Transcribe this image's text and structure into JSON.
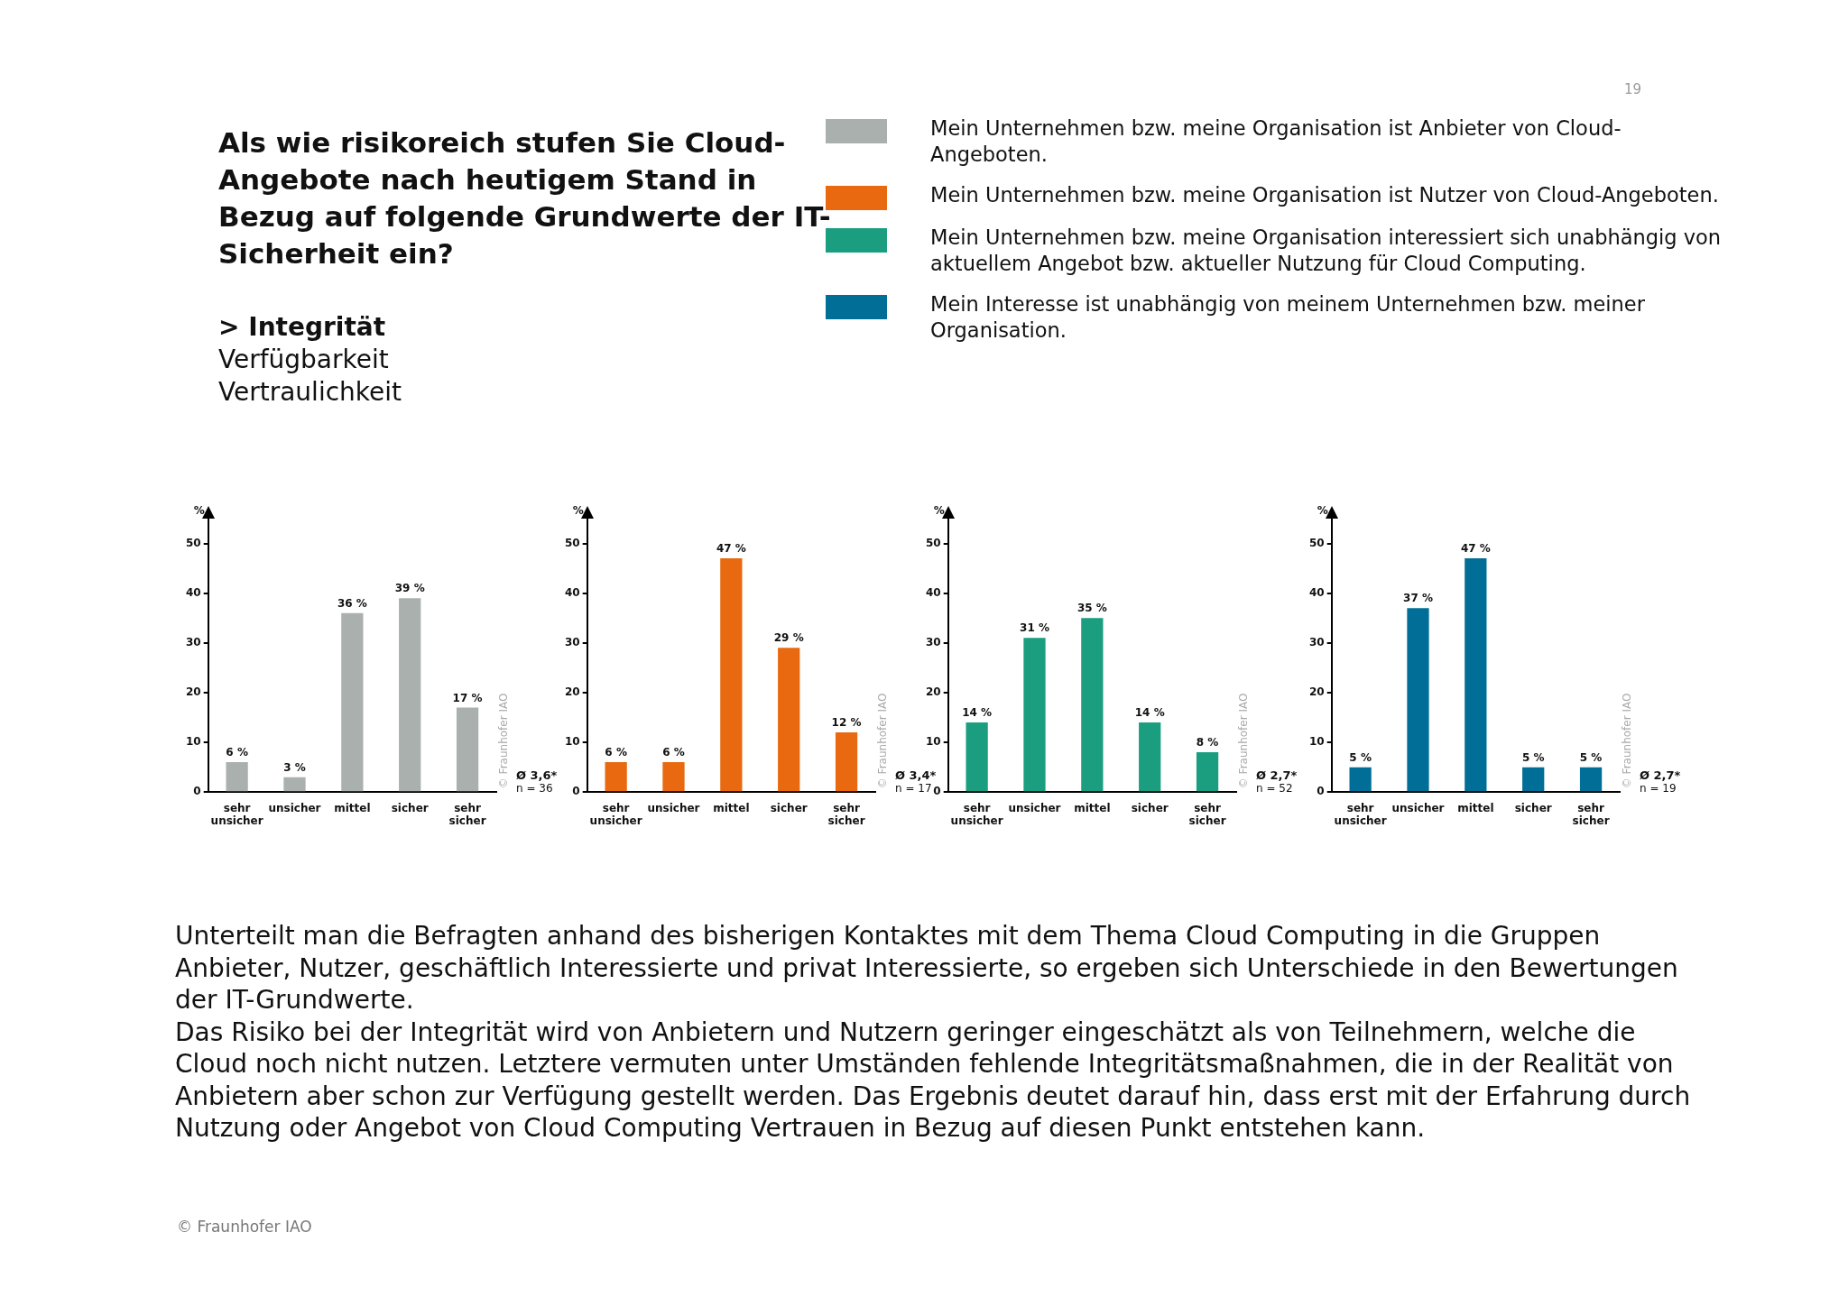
{
  "chart_data": [
    {
      "type": "other",
      "title": "Als wie risikoreich stufen Sie Cloud-Angebote nach heutigem Stand in Bezug auf folgende Grundwerte der IT-Sicherheit ein?",
      "subtitle": "> Integrität",
      "annotations": [
        "Verfügbarkeit",
        "Vertraulichkeit",
        "Unterteilt man die Befragten anhand des bisherigen Kontaktes mit dem Thema Cloud Computing in die Gruppen Anbieter, Nutzer, geschäftlich Interessierte und privat Interessierte, so ergeben sich Unterschiede in den Bewertungen der IT-Grundwerte.",
        "Das Risiko bei der Integrität wird von Anbietern und Nutzern geringer eingeschätzt als von Teilnehmern, welche die Cloud noch nicht nutzen. Letztere vermuten unter Umständen fehlende Integritätsmaßnahmen, die in der Realität von Anbietern aber schon zur Verfügung gestellt werden. Das Ergebnis deutet darauf hin, dass erst mit der Erfahrung durch Nutzung oder Angebot von Cloud Computing Vertrauen in Bezug auf diesen Punkt entstehen kann.",
        "© Fraunhofer IAO",
        "19"
      ]
    },
    {
      "type": "bar",
      "ylabel": "%",
      "categories": [
        "sehr unsicher",
        "unsicher",
        "mittel",
        "sicher",
        "sehr sicher"
      ],
      "ylim": [
        0,
        55
      ],
      "yticks": [
        0,
        10,
        20,
        30,
        40,
        50
      ],
      "legend": "top",
      "series": [
        {
          "name": "Mein Unternehmen bzw. meine Organisation ist Anbieter von Cloud-Angeboten.",
          "color": "#aab0ad",
          "values": [
            6,
            3,
            36,
            39,
            17
          ],
          "value_labels": [
            "6 %",
            "3 %",
            "36 %",
            "39 %",
            "17 %"
          ]
        }
      ],
      "annotations": [
        "Ø 3,6*",
        "n = 36",
        "© Fraunhofer IAO"
      ]
    },
    {
      "type": "bar",
      "ylabel": "%",
      "categories": [
        "sehr unsicher",
        "unsicher",
        "mittel",
        "sicher",
        "sehr sicher"
      ],
      "ylim": [
        0,
        55
      ],
      "yticks": [
        0,
        10,
        20,
        30,
        40,
        50
      ],
      "legend": "top",
      "series": [
        {
          "name": "Mein Unternehmen bzw. meine Organisation ist Nutzer von Cloud-Angeboten.",
          "color": "#e8690f",
          "values": [
            6,
            6,
            47,
            29,
            12
          ],
          "value_labels": [
            "6 %",
            "6 %",
            "47 %",
            "29 %",
            "12 %"
          ]
        }
      ],
      "annotations": [
        "Ø 3,4*",
        "n = 17",
        "© Fraunhofer IAO"
      ]
    },
    {
      "type": "bar",
      "ylabel": "%",
      "categories": [
        "sehr unsicher",
        "unsicher",
        "mittel",
        "sicher",
        "sehr sicher"
      ],
      "ylim": [
        0,
        55
      ],
      "yticks": [
        0,
        10,
        20,
        30,
        40,
        50
      ],
      "legend": "top",
      "series": [
        {
          "name": "Mein Unternehmen bzw. meine Organisation interessiert sich unabhängig von aktuellem Angebot bzw. aktueller Nutzung für Cloud Computing.",
          "color": "#1a9e7f",
          "values": [
            14,
            31,
            35,
            14,
            8
          ],
          "value_labels": [
            "14 %",
            "31 %",
            "35 %",
            "14 %",
            "8 %"
          ]
        }
      ],
      "annotations": [
        "Ø 2,7*",
        "n = 52",
        "© Fraunhofer IAO"
      ]
    },
    {
      "type": "bar",
      "ylabel": "%",
      "categories": [
        "sehr unsicher",
        "unsicher",
        "mittel",
        "sicher",
        "sehr sicher"
      ],
      "ylim": [
        0,
        55
      ],
      "yticks": [
        0,
        10,
        20,
        30,
        40,
        50
      ],
      "legend": "top",
      "series": [
        {
          "name": "Mein Interesse ist unabhängig von meinem Unternehmen bzw. meiner Organisation.",
          "color": "#006e96",
          "values": [
            5,
            37,
            47,
            5,
            5
          ],
          "value_labels": [
            "5 %",
            "37 %",
            "47 %",
            "5 %",
            "5 %"
          ]
        }
      ],
      "annotations": [
        "Ø 2,7*",
        "n = 19",
        "© Fraunhofer IAO"
      ]
    }
  ]
}
